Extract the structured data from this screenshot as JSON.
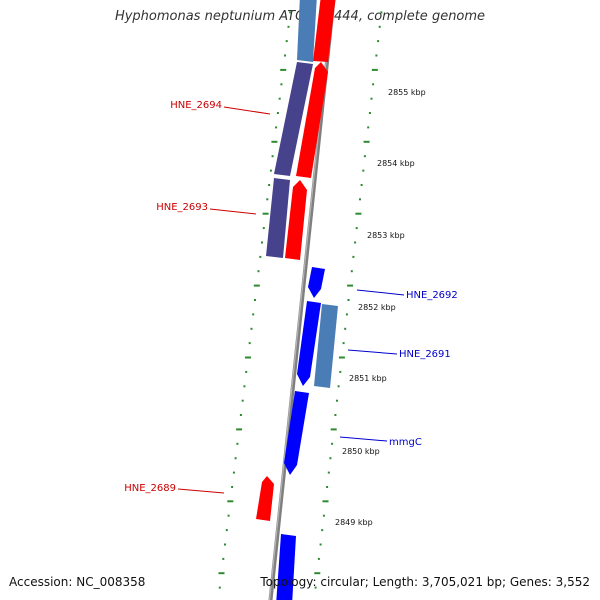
{
  "title": "Hyphomonas neptunium ATCC 15444, complete genome",
  "footer": {
    "accession": "Accession: NC_008358",
    "summary": "Topology: circular; Length: 3,705,021 bp; Genes: 3,552"
  },
  "colors": {
    "backbone": "#7f7f7f",
    "tick_dots": "#2f8a2f",
    "forward_gene": "#ff0000",
    "reverse_gene": "#0000ff",
    "dark_gene": "#46428c",
    "steel_gene": "#4a7db5",
    "label_red": "#cc0000",
    "label_blue": "#0000cc"
  },
  "scale_labels": [
    "2855 kbp",
    "2854 kbp",
    "2853 kbp",
    "2852 kbp",
    "2851 kbp",
    "2850 kbp",
    "2849 kbp"
  ],
  "gene_labels": [
    {
      "name": "HNE_2694",
      "color": "red"
    },
    {
      "name": "HNE_2693",
      "color": "red"
    },
    {
      "name": "HNE_2692",
      "color": "blue"
    },
    {
      "name": "HNE_2691",
      "color": "blue"
    },
    {
      "name": "mmgC",
      "color": "blue"
    },
    {
      "name": "HNE_2689",
      "color": "red"
    }
  ]
}
